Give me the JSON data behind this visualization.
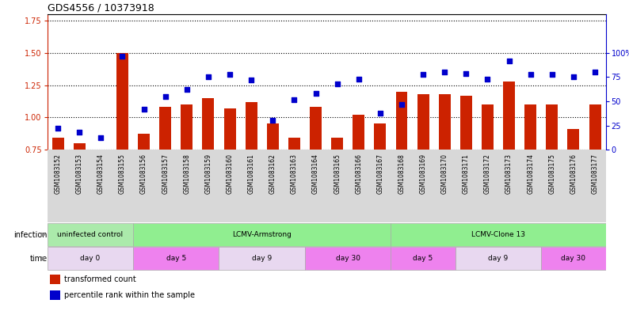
{
  "title": "GDS4556 / 10373918",
  "samples": [
    "GSM1083152",
    "GSM1083153",
    "GSM1083154",
    "GSM1083155",
    "GSM1083156",
    "GSM1083157",
    "GSM1083158",
    "GSM1083159",
    "GSM1083160",
    "GSM1083161",
    "GSM1083162",
    "GSM1083163",
    "GSM1083164",
    "GSM1083165",
    "GSM1083166",
    "GSM1083167",
    "GSM1083168",
    "GSM1083169",
    "GSM1083170",
    "GSM1083171",
    "GSM1083172",
    "GSM1083173",
    "GSM1083174",
    "GSM1083175",
    "GSM1083176",
    "GSM1083177"
  ],
  "red_values": [
    0.84,
    0.8,
    0.74,
    1.5,
    0.87,
    1.08,
    1.1,
    1.15,
    1.07,
    1.12,
    0.95,
    0.84,
    1.08,
    0.84,
    1.02,
    0.95,
    1.2,
    1.18,
    1.18,
    1.17,
    1.1,
    1.28,
    1.1,
    1.1,
    0.91,
    1.1
  ],
  "blue_values": [
    22,
    18,
    12,
    97,
    42,
    55,
    62,
    75,
    78,
    72,
    30,
    52,
    58,
    68,
    73,
    38,
    47,
    78,
    80,
    79,
    73,
    92,
    78,
    78,
    75,
    80
  ],
  "infection_groups": [
    {
      "label": "uninfected control",
      "start": 0,
      "end": 4,
      "color": "#abeaab"
    },
    {
      "label": "LCMV-Armstrong",
      "start": 4,
      "end": 16,
      "color": "#90ee90"
    },
    {
      "label": "LCMV-Clone 13",
      "start": 16,
      "end": 26,
      "color": "#90ee90"
    }
  ],
  "time_groups": [
    {
      "label": "day 0",
      "start": 0,
      "end": 4,
      "color": "#e8d8f0"
    },
    {
      "label": "day 5",
      "start": 4,
      "end": 8,
      "color": "#ee82ee"
    },
    {
      "label": "day 9",
      "start": 8,
      "end": 12,
      "color": "#e8d8f0"
    },
    {
      "label": "day 30",
      "start": 12,
      "end": 16,
      "color": "#ee82ee"
    },
    {
      "label": "day 5",
      "start": 16,
      "end": 19,
      "color": "#ee82ee"
    },
    {
      "label": "day 9",
      "start": 19,
      "end": 23,
      "color": "#e8d8f0"
    },
    {
      "label": "day 30",
      "start": 23,
      "end": 26,
      "color": "#ee82ee"
    }
  ],
  "ylim_left": [
    0.75,
    1.8
  ],
  "yticks_left": [
    0.75,
    1.0,
    1.25,
    1.5,
    1.75
  ],
  "ylim_right": [
    0,
    140
  ],
  "yticks_right": [
    0,
    25,
    50,
    75,
    100
  ],
  "bar_color": "#cc2200",
  "dot_color": "#0000cc",
  "legend_items": [
    {
      "label": "transformed count",
      "color": "#cc2200"
    },
    {
      "label": "percentile rank within the sample",
      "color": "#0000cc"
    }
  ]
}
